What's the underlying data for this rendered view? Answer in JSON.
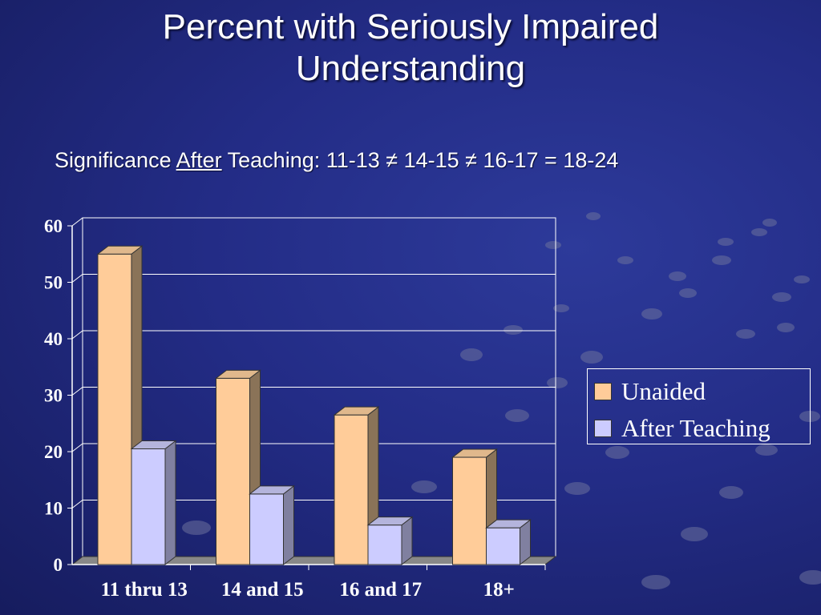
{
  "title_line1": "Percent with Seriously Impaired",
  "title_line2": "Understanding",
  "subtitle": {
    "prefix": "Significance ",
    "underlined": "After",
    "suffix": " Teaching: 11-13 ≠ 14-15 ≠ 16-17 = 18-24"
  },
  "colors": {
    "unaided": "#ffcc99",
    "after_teaching": "#ccccff",
    "background": "#232c86"
  },
  "chart_data": {
    "type": "bar",
    "categories": [
      "11 thru 13",
      "14 and 15",
      "16 and 17",
      "18+"
    ],
    "series": [
      {
        "name": "Unaided",
        "values": [
          55,
          33,
          26.5,
          19
        ]
      },
      {
        "name": "After Teaching",
        "values": [
          20.5,
          12.5,
          7,
          6.5
        ]
      }
    ],
    "ylim": [
      0,
      60
    ],
    "yticks": [
      "0",
      "10",
      "20",
      "30",
      "40",
      "50",
      "60"
    ],
    "grid": true,
    "legend_position": "right",
    "style": "3d-clustered"
  }
}
